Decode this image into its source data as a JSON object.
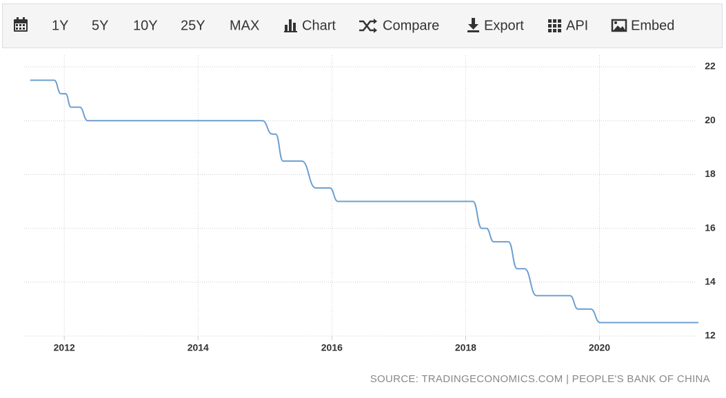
{
  "toolbar": [
    "1Y",
    "5Y",
    "10Y",
    "25Y",
    "MAX",
    "Chart",
    "Compare",
    "Export",
    "API",
    "Embed"
  ],
  "chart_data": {
    "type": "line",
    "source": "SOURCE: TRADINGECONOMICS.COM | PEOPLE'S BANK OF CHINA",
    "x": [
      2011.49,
      2011.85,
      2011.95,
      2012.02,
      2012.1,
      2012.23,
      2012.35,
      2014.96,
      2015.11,
      2015.16,
      2015.27,
      2015.55,
      2015.76,
      2015.97,
      2016.09,
      2018.11,
      2018.24,
      2018.31,
      2018.42,
      2018.64,
      2018.77,
      2018.88,
      2019.06,
      2019.56,
      2019.68,
      2019.87,
      2020.01,
      2021.48
    ],
    "series": [
      {
        "color": "#6d9fcf",
        "values": [
          21.5,
          21.5,
          21,
          21,
          20.5,
          20.5,
          20,
          20,
          19.5,
          19.5,
          18.5,
          18.5,
          17.5,
          17.5,
          17,
          17,
          16,
          16,
          15.5,
          15.5,
          14.5,
          14.5,
          13.5,
          13.5,
          13,
          13,
          12.5,
          12.5
        ]
      }
    ],
    "xlim": [
      2011.4,
      2021.5
    ],
    "xticks": [
      2012,
      2014,
      2016,
      2018,
      2020
    ],
    "ylim": [
      12,
      22
    ],
    "yticks": [
      12,
      14,
      16,
      18,
      20,
      22
    ],
    "grid": true
  }
}
